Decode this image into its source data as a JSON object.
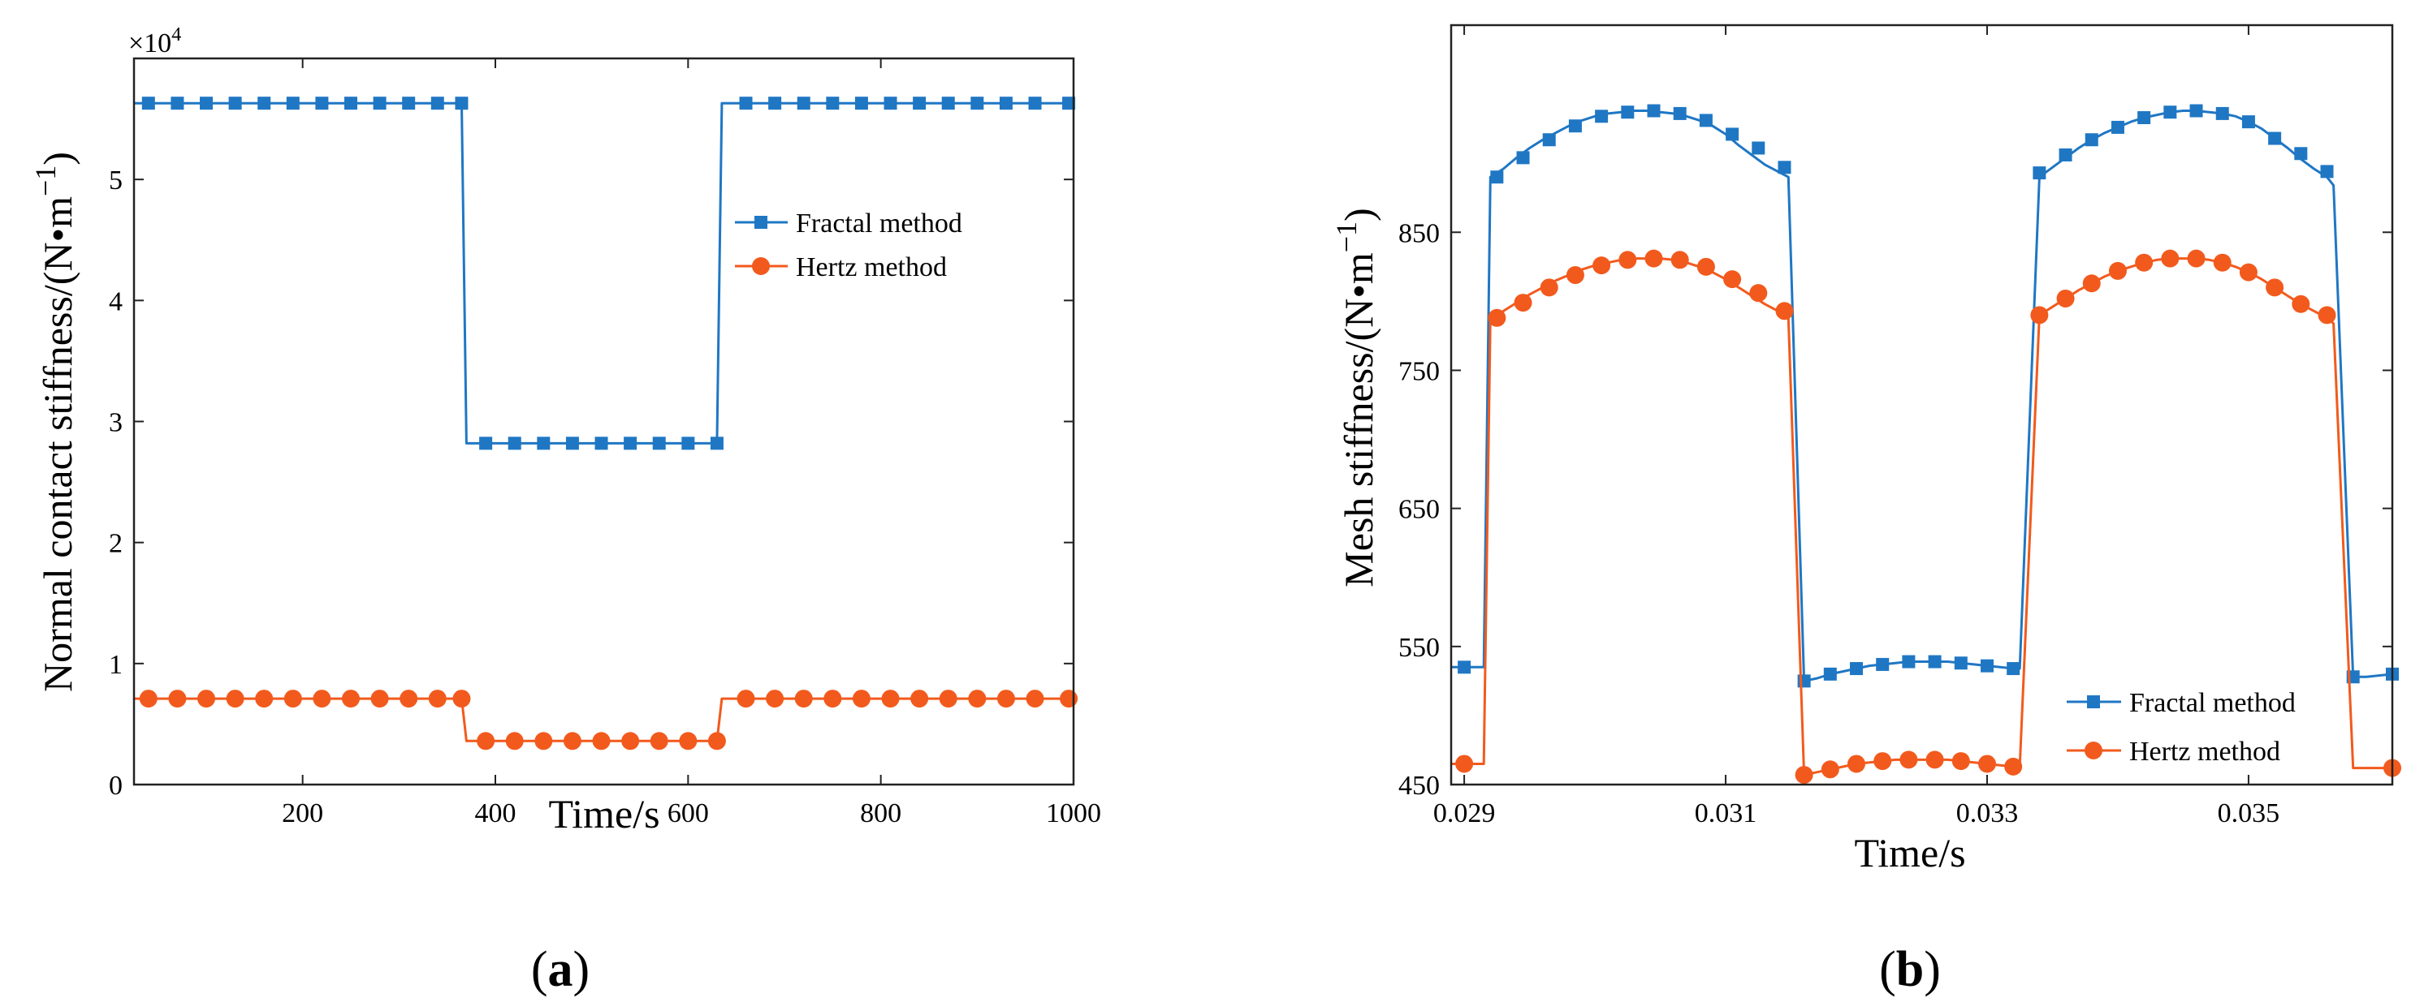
{
  "chart_data": [
    {
      "type": "line",
      "panel": "a",
      "caption": "a",
      "title": "",
      "xlabel": "Time/s",
      "ylabel": "Normal contact stiffness/(N•m",
      "ylabel_exp": "−1",
      "ylabel_close": ")",
      "y_multiplier": "×10",
      "y_multiplier_exp": "4",
      "xlim": [
        25,
        1000
      ],
      "ylim": [
        0,
        6
      ],
      "xticks": [
        200,
        400,
        600,
        800,
        1000
      ],
      "xtick_labels": [
        "200",
        "400",
        "600",
        "800",
        "1000"
      ],
      "yticks": [
        0,
        1,
        2,
        3,
        4,
        5
      ],
      "ytick_labels": [
        "0",
        "1",
        "2",
        "3",
        "4",
        "5"
      ],
      "legend_position": "right-middle",
      "series": [
        {
          "name": "Fractal method",
          "color": "#1f77c4",
          "marker": "square",
          "x": [
            25,
            365,
            370,
            630,
            635,
            1000
          ],
          "y": [
            5.63,
            5.63,
            2.82,
            2.82,
            5.63,
            5.63
          ],
          "marker_x": [
            40,
            70,
            100,
            130,
            160,
            190,
            220,
            250,
            280,
            310,
            340,
            365,
            390,
            420,
            450,
            480,
            510,
            540,
            570,
            600,
            630,
            660,
            690,
            720,
            750,
            780,
            810,
            840,
            870,
            900,
            930,
            960,
            995
          ],
          "marker_y": [
            5.63,
            5.63,
            5.63,
            5.63,
            5.63,
            5.63,
            5.63,
            5.63,
            5.63,
            5.63,
            5.63,
            5.63,
            2.82,
            2.82,
            2.82,
            2.82,
            2.82,
            2.82,
            2.82,
            2.82,
            2.82,
            5.63,
            5.63,
            5.63,
            5.63,
            5.63,
            5.63,
            5.63,
            5.63,
            5.63,
            5.63,
            5.63,
            5.63
          ]
        },
        {
          "name": "Hertz method",
          "color": "#f25a1d",
          "marker": "circle",
          "x": [
            25,
            365,
            370,
            630,
            635,
            1000
          ],
          "y": [
            0.71,
            0.71,
            0.36,
            0.36,
            0.71,
            0.71
          ],
          "marker_x": [
            40,
            70,
            100,
            130,
            160,
            190,
            220,
            250,
            280,
            310,
            340,
            365,
            390,
            420,
            450,
            480,
            510,
            540,
            570,
            600,
            630,
            660,
            690,
            720,
            750,
            780,
            810,
            840,
            870,
            900,
            930,
            960,
            995
          ],
          "marker_y": [
            0.71,
            0.71,
            0.71,
            0.71,
            0.71,
            0.71,
            0.71,
            0.71,
            0.71,
            0.71,
            0.71,
            0.71,
            0.36,
            0.36,
            0.36,
            0.36,
            0.36,
            0.36,
            0.36,
            0.36,
            0.36,
            0.71,
            0.71,
            0.71,
            0.71,
            0.71,
            0.71,
            0.71,
            0.71,
            0.71,
            0.71,
            0.71,
            0.71
          ]
        }
      ]
    },
    {
      "type": "line",
      "panel": "b",
      "caption": "b",
      "title": "",
      "xlabel": "Time/s",
      "ylabel": "Mesh stiffness/(N•m",
      "ylabel_exp": "−1",
      "ylabel_close": ")",
      "xlim": [
        0.0289,
        0.0361
      ],
      "ylim": [
        450,
        1000
      ],
      "xticks": [
        0.029,
        0.031,
        0.033,
        0.035
      ],
      "xtick_labels": [
        "0.029",
        "0.031",
        "0.033",
        "0.035"
      ],
      "yticks": [
        450,
        550,
        650,
        750,
        850
      ],
      "ytick_labels": [
        "450",
        "550",
        "650",
        "750",
        "850"
      ],
      "legend_position": "bottom-right",
      "series": [
        {
          "name": "Fractal method",
          "color": "#1f77c4",
          "marker": "square",
          "x": [
            0.0289,
            0.02915,
            0.0292,
            0.0293,
            0.0294,
            0.0295,
            0.0296,
            0.0297,
            0.0298,
            0.0299,
            0.03,
            0.0301,
            0.0302,
            0.0303,
            0.0304,
            0.0305,
            0.0306,
            0.0307,
            0.0308,
            0.0309,
            0.031,
            0.0311,
            0.0312,
            0.0313,
            0.0314,
            0.03148,
            0.0316,
            0.0317,
            0.0318,
            0.0319,
            0.032,
            0.0321,
            0.0322,
            0.0323,
            0.0324,
            0.0325,
            0.0326,
            0.0327,
            0.0328,
            0.0329,
            0.033,
            0.0331,
            0.0332,
            0.03325,
            0.0334,
            0.0335,
            0.0336,
            0.0337,
            0.0338,
            0.0339,
            0.034,
            0.0341,
            0.0342,
            0.0343,
            0.0344,
            0.0345,
            0.0346,
            0.0347,
            0.0348,
            0.0349,
            0.035,
            0.0351,
            0.0352,
            0.0353,
            0.0354,
            0.0355,
            0.0356,
            0.03565,
            0.0358,
            0.0359,
            0.0361
          ],
          "y": [
            535,
            535,
            890,
            896,
            904,
            911,
            917,
            922,
            927,
            931,
            934,
            936,
            937,
            938,
            938,
            937,
            936,
            934,
            931,
            927,
            921,
            913,
            906,
            899,
            894,
            890,
            525,
            527,
            530,
            532,
            534,
            536,
            537,
            538,
            539,
            539,
            539,
            539,
            538,
            537,
            536,
            535,
            534,
            534,
            890,
            897,
            904,
            911,
            917,
            922,
            926,
            930,
            933,
            935,
            937,
            938,
            938,
            937,
            936,
            934,
            930,
            925,
            918,
            911,
            903,
            896,
            890,
            884,
            528,
            528,
            530
          ],
          "marker_x": [
            0.029,
            0.02925,
            0.02945,
            0.02965,
            0.02985,
            0.03005,
            0.03025,
            0.03045,
            0.03065,
            0.03085,
            0.03105,
            0.03125,
            0.03145,
            0.0316,
            0.0318,
            0.032,
            0.0322,
            0.0324,
            0.0326,
            0.0328,
            0.033,
            0.0332,
            0.0334,
            0.0336,
            0.0338,
            0.034,
            0.0342,
            0.0344,
            0.0346,
            0.0348,
            0.035,
            0.0352,
            0.0354,
            0.0356,
            0.0358,
            0.0361
          ],
          "marker_y": [
            535,
            890,
            904,
            917,
            927,
            934,
            937,
            938,
            936,
            931,
            921,
            911,
            897,
            525,
            530,
            534,
            537,
            539,
            539,
            538,
            536,
            534,
            893,
            906,
            917,
            926,
            933,
            937,
            938,
            936,
            930,
            918,
            907,
            894,
            528,
            530
          ]
        },
        {
          "name": "Hertz method",
          "color": "#f25a1d",
          "marker": "circle",
          "x": [
            0.0289,
            0.02915,
            0.0292,
            0.0293,
            0.0294,
            0.0295,
            0.0296,
            0.0297,
            0.0298,
            0.0299,
            0.03,
            0.0301,
            0.0302,
            0.0303,
            0.0304,
            0.0305,
            0.0306,
            0.0307,
            0.0308,
            0.0309,
            0.031,
            0.0311,
            0.0312,
            0.0313,
            0.0314,
            0.03148,
            0.0316,
            0.0317,
            0.0318,
            0.0319,
            0.032,
            0.0321,
            0.0322,
            0.0323,
            0.0324,
            0.0325,
            0.0326,
            0.0327,
            0.0328,
            0.0329,
            0.033,
            0.0331,
            0.0332,
            0.03325,
            0.0334,
            0.0335,
            0.0336,
            0.0337,
            0.0338,
            0.0339,
            0.034,
            0.0341,
            0.0342,
            0.0343,
            0.0344,
            0.0345,
            0.0346,
            0.0347,
            0.0348,
            0.0349,
            0.035,
            0.0351,
            0.0352,
            0.0353,
            0.0354,
            0.0355,
            0.0356,
            0.03565,
            0.0358,
            0.0359,
            0.0361
          ],
          "y": [
            465,
            465,
            788,
            793,
            799,
            805,
            810,
            815,
            819,
            823,
            826,
            828,
            830,
            831,
            831,
            831,
            830,
            828,
            825,
            821,
            816,
            810,
            804,
            798,
            793,
            788,
            457,
            459,
            461,
            463,
            465,
            466,
            467,
            468,
            468,
            468,
            468,
            468,
            467,
            466,
            465,
            464,
            463,
            463,
            790,
            796,
            802,
            808,
            813,
            818,
            822,
            825,
            828,
            830,
            831,
            831,
            831,
            830,
            828,
            825,
            821,
            816,
            810,
            804,
            798,
            793,
            788,
            784,
            462,
            462,
            462
          ],
          "marker_x": [
            0.029,
            0.02925,
            0.02945,
            0.02965,
            0.02985,
            0.03005,
            0.03025,
            0.03045,
            0.03065,
            0.03085,
            0.03105,
            0.03125,
            0.03145,
            0.0316,
            0.0318,
            0.032,
            0.0322,
            0.0324,
            0.0326,
            0.0328,
            0.033,
            0.0332,
            0.0334,
            0.0336,
            0.0338,
            0.034,
            0.0342,
            0.0344,
            0.0346,
            0.0348,
            0.035,
            0.0352,
            0.0354,
            0.0356,
            0.0361
          ],
          "marker_y": [
            465,
            788,
            799,
            810,
            819,
            826,
            830,
            831,
            830,
            825,
            816,
            806,
            793,
            457,
            461,
            465,
            467,
            468,
            468,
            467,
            465,
            463,
            790,
            802,
            813,
            822,
            828,
            831,
            831,
            828,
            821,
            810,
            798,
            790,
            462
          ]
        }
      ]
    }
  ]
}
